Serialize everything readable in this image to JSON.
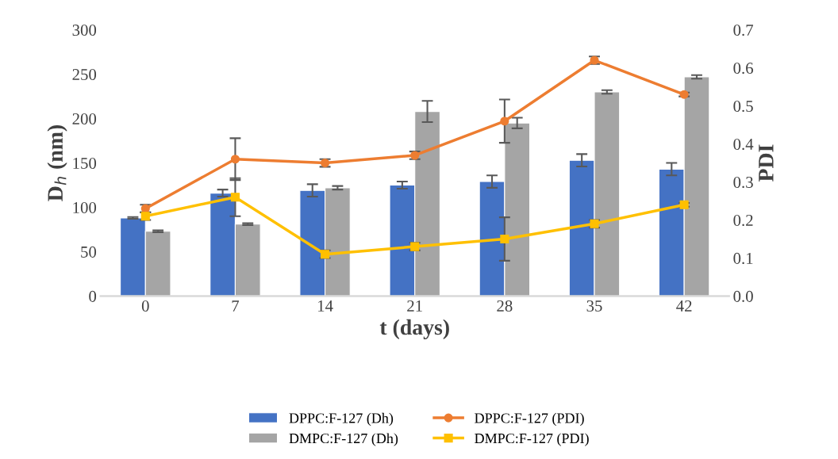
{
  "chart_data": {
    "type": "bar",
    "xlabel": "t (days)",
    "ylabel": "D$_{h}$ (nm)",
    "y2label": "PDI",
    "categories": [
      "0",
      "7",
      "14",
      "21",
      "28",
      "35",
      "42"
    ],
    "series": [
      {
        "name": "DPPC:F-127 (Dh)",
        "color": "#4472c4",
        "values": [
          88,
          116,
          119,
          125,
          129,
          153,
          143
        ],
        "errors": [
          1,
          4,
          7,
          4,
          7,
          7,
          7
        ]
      },
      {
        "name": "DMPC:F-127 (Dh)",
        "color": "#a5a5a5",
        "values": [
          73,
          81,
          122,
          208,
          195,
          230,
          247
        ],
        "errors": [
          1,
          1,
          2,
          12,
          6,
          2,
          2
        ]
      },
      {
        "name": "DPPC:F-127 (PDI)",
        "type": "line",
        "axis": "y2",
        "marker": "circle",
        "color": "#ed7d31",
        "values": [
          0.23,
          0.36,
          0.35,
          0.37,
          0.46,
          0.62,
          0.53
        ],
        "errors": [
          0.01,
          0.055,
          0.01,
          0.01,
          0.057,
          0.01,
          0.005
        ]
      },
      {
        "name": "DMPC:F-127 (PDI)",
        "type": "line",
        "axis": "y2",
        "marker": "square",
        "color": "#ffc000",
        "values": [
          0.21,
          0.26,
          0.11,
          0.13,
          0.15,
          0.19,
          0.24
        ],
        "errors": [
          0.01,
          0.05,
          0.01,
          0.01,
          0.057,
          0.01,
          0.005
        ]
      }
    ],
    "ylim": [
      0,
      300
    ],
    "yticks": [
      0,
      50,
      100,
      150,
      200,
      250,
      300
    ],
    "y2lim": [
      0,
      0.7
    ],
    "y2ticks": [
      {
        "value": 0,
        "label": "0.0"
      },
      {
        "value": 0.1,
        "label": "0.1"
      },
      {
        "value": 0.2,
        "label": "0.2"
      },
      {
        "value": 0.3,
        "label": "0.3"
      },
      {
        "value": 0.4,
        "label": "0.4"
      },
      {
        "value": 0.5,
        "label": "0.5"
      },
      {
        "value": 0.6,
        "label": "0.6"
      },
      {
        "value": 0.7,
        "label": "0.7"
      }
    ],
    "grid": false,
    "legend": "bottom"
  }
}
